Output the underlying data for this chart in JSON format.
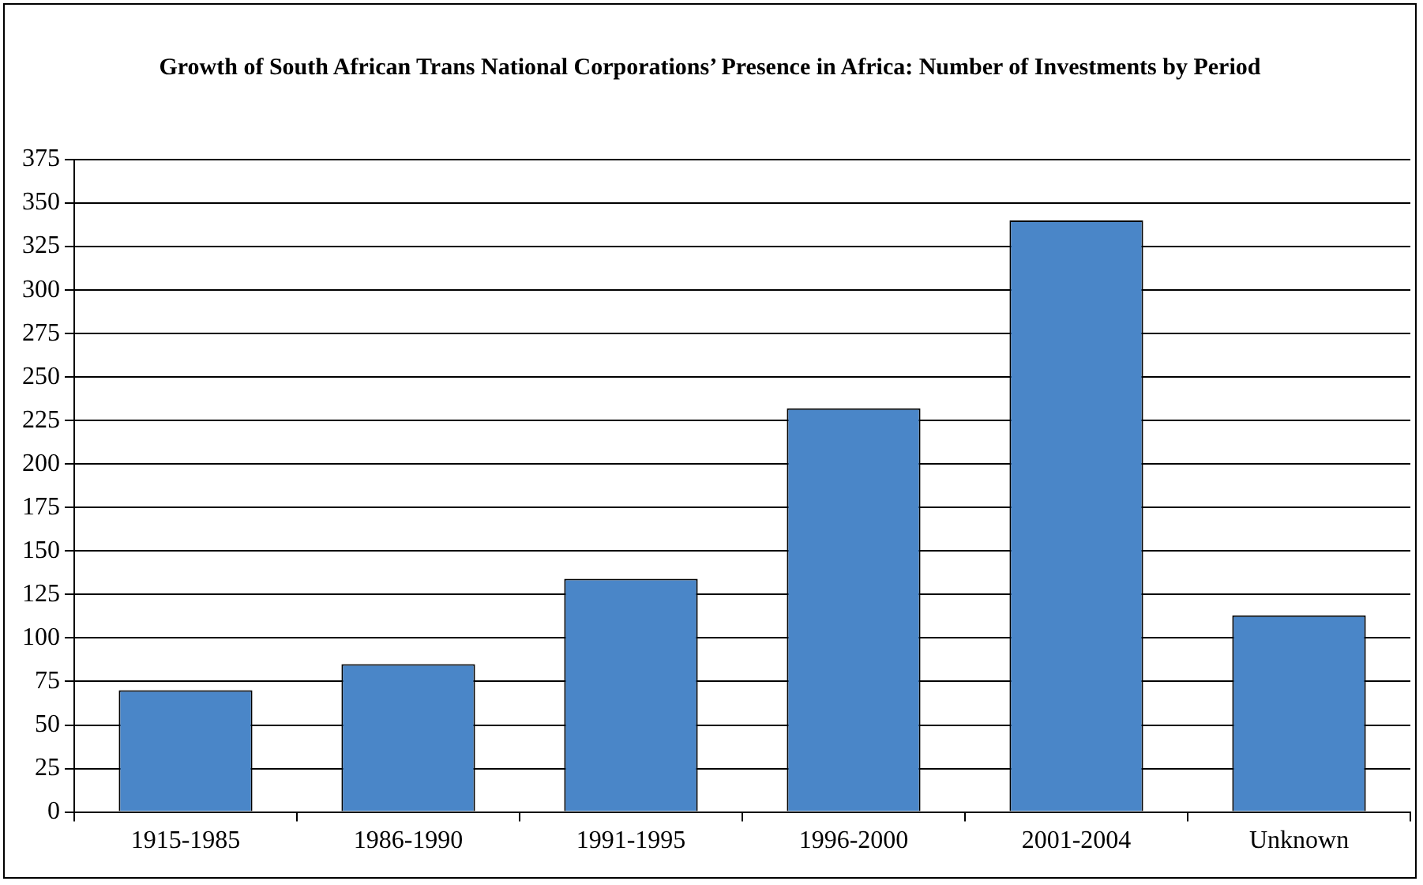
{
  "chart_data": {
    "type": "bar",
    "title": "Growth of South African Trans National Corporations’ Presence in Africa: Number of Investments by Period",
    "categories": [
      "1915-1985",
      "1986-1990",
      "1991-1995",
      "1996-2000",
      "2001-2004",
      "Unknown"
    ],
    "values": [
      70,
      85,
      134,
      232,
      340,
      113
    ],
    "color": "#4a86c8",
    "ylim": [
      0,
      375
    ],
    "yticks": [
      0,
      25,
      50,
      75,
      100,
      125,
      150,
      175,
      200,
      225,
      250,
      275,
      300,
      325,
      350,
      375
    ],
    "grid": "y",
    "legend": false
  }
}
